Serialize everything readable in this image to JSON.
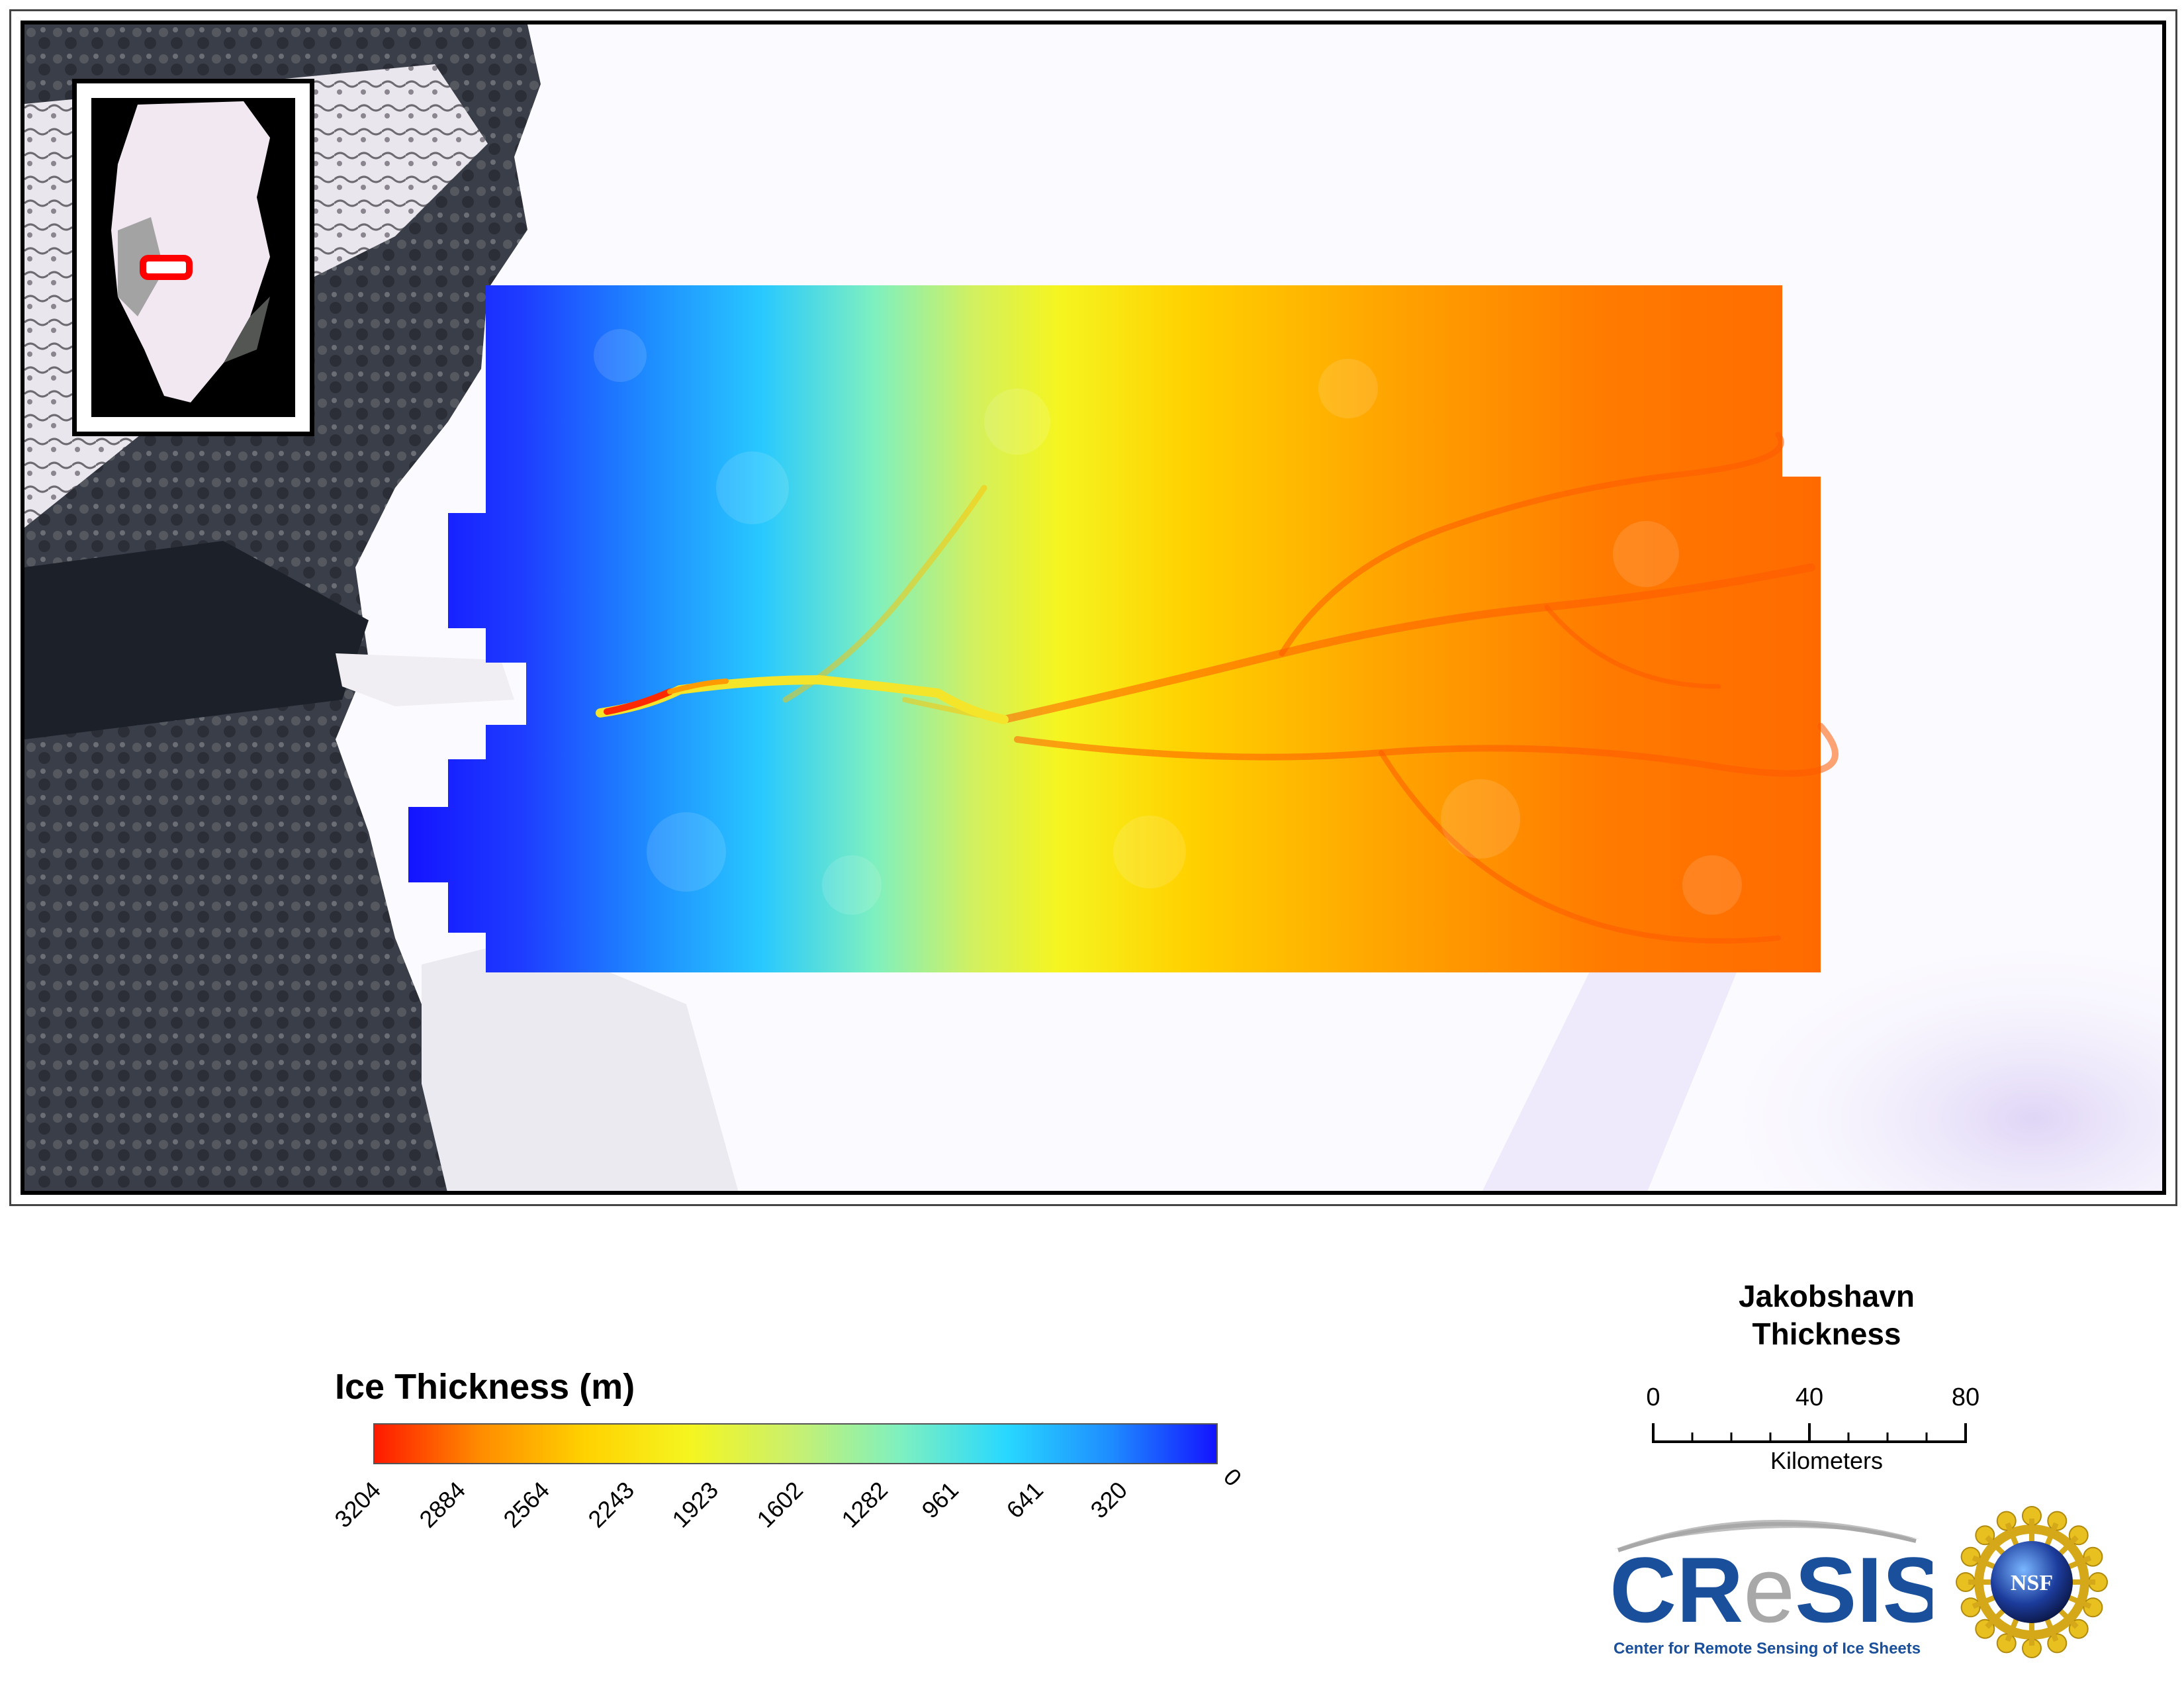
{
  "legend": {
    "title": "Ice Thickness (m)",
    "ticks": [
      "3204",
      "2884",
      "2564",
      "2243",
      "1923",
      "1602",
      "1282",
      "961",
      "641",
      "320",
      "0"
    ],
    "colors": [
      "#ff1a00",
      "#ff8c00",
      "#ffd200",
      "#f5f520",
      "#c8f070",
      "#7ef0c0",
      "#28d8ff",
      "#1e8cff",
      "#1414ff"
    ]
  },
  "map": {
    "title_line1": "Jakobshavn",
    "title_line2": "Thickness",
    "inset_marker_color": "#ff0000"
  },
  "scalebar": {
    "labels": [
      "0",
      "40",
      "80"
    ],
    "units": "Kilometers"
  },
  "logos": {
    "cresis_wordmark_prefix": "CR",
    "cresis_wordmark_e": "e",
    "cresis_wordmark_suffix": "SIS",
    "cresis_tagline": "Center for Remote Sensing of Ice Sheets",
    "nsf_text": "NSF"
  }
}
